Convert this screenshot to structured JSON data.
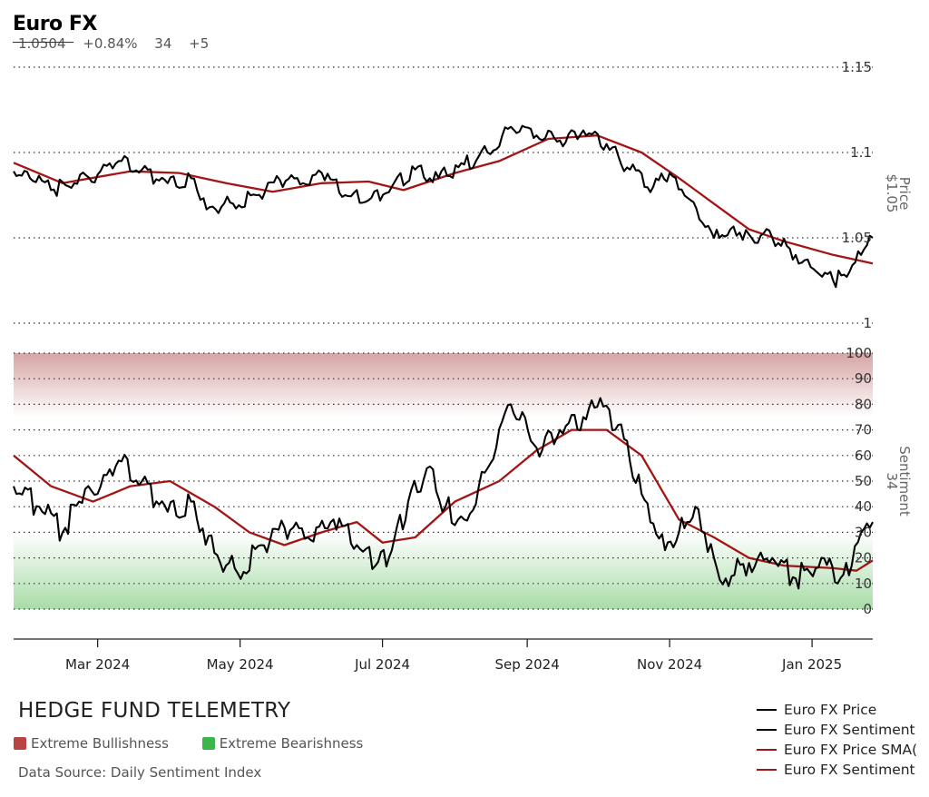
{
  "header": {
    "title": "Euro FX",
    "last_price": "1.0504",
    "change_pct": "+0.84%",
    "sentiment_value": "34",
    "sentiment_change": "+5"
  },
  "footer": {
    "brand": "HEDGE FUND TELEMETRY",
    "key_bull_label": "Extreme Bullishness",
    "key_bear_label": "Extreme Bearishness",
    "key_bull_color": "#b84444",
    "key_bear_color": "#3cb54a",
    "source": "Data Source: Daily Sentiment Index"
  },
  "legend": [
    {
      "label": "Euro FX Price",
      "color": "#000000"
    },
    {
      "label": "Euro FX Sentiment",
      "color": "#000000"
    },
    {
      "label": "Euro FX Price SMA(",
      "color": "#a31515"
    },
    {
      "label": "Euro FX Sentiment",
      "color": "#a31515"
    }
  ],
  "chart_data": {
    "type": "line",
    "x_start": "2024-01-25",
    "x_end": "2025-01-27",
    "x_ticks": [
      {
        "date": "2024-03-01",
        "label": "Mar 2024"
      },
      {
        "date": "2024-05-01",
        "label": "May 2024"
      },
      {
        "date": "2024-07-01",
        "label": "Jul 2024"
      },
      {
        "date": "2024-09-01",
        "label": "Sep 2024"
      },
      {
        "date": "2024-11-01",
        "label": "Nov 2024"
      },
      {
        "date": "2025-01-01",
        "label": "Jan 2025"
      }
    ],
    "price_panel": {
      "axis_label": "Price",
      "axis_value": "$1.05",
      "ylim": [
        1.0,
        1.15
      ],
      "y_ticks": [
        "1",
        "1.05",
        "1.1",
        "1.15"
      ],
      "grid": true,
      "series": [
        {
          "name": "Euro FX Price",
          "color": "#000000",
          "points": [
            [
              "2024-01-25",
              1.089
            ],
            [
              "2024-02-01",
              1.085
            ],
            [
              "2024-02-10",
              1.078
            ],
            [
              "2024-02-20",
              1.082
            ],
            [
              "2024-03-01",
              1.087
            ],
            [
              "2024-03-10",
              1.095
            ],
            [
              "2024-03-20",
              1.09
            ],
            [
              "2024-03-31",
              1.082
            ],
            [
              "2024-04-10",
              1.085
            ],
            [
              "2024-04-18",
              1.068
            ],
            [
              "2024-04-28",
              1.07
            ],
            [
              "2024-05-08",
              1.075
            ],
            [
              "2024-05-18",
              1.084
            ],
            [
              "2024-05-28",
              1.082
            ],
            [
              "2024-06-05",
              1.088
            ],
            [
              "2024-06-15",
              1.075
            ],
            [
              "2024-06-25",
              1.072
            ],
            [
              "2024-07-05",
              1.08
            ],
            [
              "2024-07-15",
              1.09
            ],
            [
              "2024-07-25",
              1.085
            ],
            [
              "2024-08-05",
              1.093
            ],
            [
              "2024-08-15",
              1.1
            ],
            [
              "2024-08-25",
              1.115
            ],
            [
              "2024-09-05",
              1.11
            ],
            [
              "2024-09-15",
              1.107
            ],
            [
              "2024-09-25",
              1.113
            ],
            [
              "2024-10-05",
              1.105
            ],
            [
              "2024-10-15",
              1.09
            ],
            [
              "2024-10-25",
              1.08
            ],
            [
              "2024-11-01",
              1.088
            ],
            [
              "2024-11-10",
              1.072
            ],
            [
              "2024-11-20",
              1.05
            ],
            [
              "2024-11-27",
              1.055
            ],
            [
              "2024-12-05",
              1.052
            ],
            [
              "2024-12-15",
              1.05
            ],
            [
              "2024-12-25",
              1.04
            ],
            [
              "2025-01-03",
              1.03
            ],
            [
              "2025-01-10",
              1.025
            ],
            [
              "2025-01-17",
              1.03
            ],
            [
              "2025-01-22",
              1.04
            ],
            [
              "2025-01-27",
              1.05
            ]
          ]
        },
        {
          "name": "Euro FX Price SMA(",
          "color": "#a31515",
          "points": [
            [
              "2024-01-25",
              1.094
            ],
            [
              "2024-02-15",
              1.082
            ],
            [
              "2024-03-15",
              1.089
            ],
            [
              "2024-04-05",
              1.088
            ],
            [
              "2024-04-25",
              1.082
            ],
            [
              "2024-05-15",
              1.077
            ],
            [
              "2024-06-05",
              1.082
            ],
            [
              "2024-06-25",
              1.083
            ],
            [
              "2024-07-10",
              1.078
            ],
            [
              "2024-08-01",
              1.088
            ],
            [
              "2024-08-20",
              1.095
            ],
            [
              "2024-09-10",
              1.108
            ],
            [
              "2024-10-01",
              1.11
            ],
            [
              "2024-10-20",
              1.1
            ],
            [
              "2024-11-05",
              1.085
            ],
            [
              "2024-11-20",
              1.07
            ],
            [
              "2024-12-05",
              1.055
            ],
            [
              "2024-12-20",
              1.048
            ],
            [
              "2025-01-10",
              1.04
            ],
            [
              "2025-01-27",
              1.035
            ]
          ]
        }
      ]
    },
    "sentiment_panel": {
      "axis_label": "Sentiment",
      "axis_value": "34",
      "ylim": [
        0,
        100
      ],
      "y_ticks": [
        "0",
        "10",
        "20",
        "30",
        "40",
        "50",
        "60",
        "70",
        "80",
        "90",
        "100"
      ],
      "grid": true,
      "bull_zone": [
        75,
        100
      ],
      "bear_zone": [
        0,
        30
      ],
      "series": [
        {
          "name": "Euro FX Sentiment",
          "color": "#000000",
          "points": [
            [
              "2024-01-25",
              48
            ],
            [
              "2024-02-05",
              40
            ],
            [
              "2024-02-15",
              30
            ],
            [
              "2024-02-22",
              42
            ],
            [
              "2024-03-01",
              45
            ],
            [
              "2024-03-10",
              58
            ],
            [
              "2024-03-20",
              50
            ],
            [
              "2024-03-31",
              38
            ],
            [
              "2024-04-10",
              42
            ],
            [
              "2024-04-20",
              22
            ],
            [
              "2024-04-30",
              14
            ],
            [
              "2024-05-10",
              25
            ],
            [
              "2024-05-20",
              32
            ],
            [
              "2024-05-30",
              28
            ],
            [
              "2024-06-10",
              35
            ],
            [
              "2024-06-20",
              25
            ],
            [
              "2024-06-28",
              17
            ],
            [
              "2024-07-05",
              23
            ],
            [
              "2024-07-12",
              42
            ],
            [
              "2024-07-20",
              55
            ],
            [
              "2024-07-28",
              40
            ],
            [
              "2024-08-05",
              35
            ],
            [
              "2024-08-15",
              55
            ],
            [
              "2024-08-25",
              80
            ],
            [
              "2024-09-05",
              63
            ],
            [
              "2024-09-15",
              70
            ],
            [
              "2024-09-25",
              75
            ],
            [
              "2024-10-01",
              79
            ],
            [
              "2024-10-10",
              72
            ],
            [
              "2024-10-20",
              45
            ],
            [
              "2024-10-30",
              23
            ],
            [
              "2024-11-05",
              30
            ],
            [
              "2024-11-12",
              40
            ],
            [
              "2024-11-20",
              20
            ],
            [
              "2024-11-25",
              12
            ],
            [
              "2024-12-05",
              18
            ],
            [
              "2024-12-15",
              20
            ],
            [
              "2024-12-25",
              12
            ],
            [
              "2025-01-05",
              20
            ],
            [
              "2025-01-12",
              10
            ],
            [
              "2025-01-18",
              17
            ],
            [
              "2025-01-22",
              30
            ],
            [
              "2025-01-27",
              34
            ]
          ]
        },
        {
          "name": "Euro FX Sentiment",
          "color": "#a31515",
          "points": [
            [
              "2024-01-25",
              60
            ],
            [
              "2024-02-10",
              48
            ],
            [
              "2024-02-28",
              42
            ],
            [
              "2024-03-15",
              48
            ],
            [
              "2024-04-01",
              50
            ],
            [
              "2024-04-20",
              40
            ],
            [
              "2024-05-05",
              30
            ],
            [
              "2024-05-20",
              25
            ],
            [
              "2024-06-05",
              30
            ],
            [
              "2024-06-20",
              34
            ],
            [
              "2024-07-01",
              26
            ],
            [
              "2024-07-15",
              28
            ],
            [
              "2024-08-01",
              42
            ],
            [
              "2024-08-20",
              50
            ],
            [
              "2024-09-05",
              62
            ],
            [
              "2024-09-20",
              70
            ],
            [
              "2024-10-05",
              70
            ],
            [
              "2024-10-20",
              60
            ],
            [
              "2024-11-05",
              35
            ],
            [
              "2024-11-20",
              28
            ],
            [
              "2024-12-05",
              20
            ],
            [
              "2024-12-20",
              17
            ],
            [
              "2025-01-10",
              16
            ],
            [
              "2025-01-20",
              15
            ],
            [
              "2025-01-27",
              19
            ]
          ]
        }
      ]
    }
  }
}
